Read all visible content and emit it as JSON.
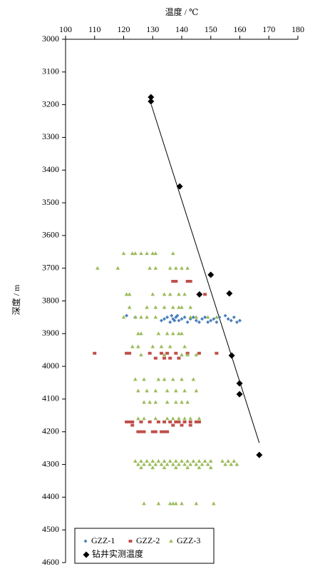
{
  "chart_data": {
    "type": "scatter",
    "x_label": "温度 / ℃",
    "y_label": "深度 / m",
    "xlim": [
      100,
      180
    ],
    "xticks": [
      100,
      110,
      120,
      130,
      140,
      150,
      160,
      170,
      180
    ],
    "ylim": [
      3000,
      4600
    ],
    "yticks": [
      3000,
      3100,
      3200,
      3300,
      3400,
      3500,
      3600,
      3700,
      3800,
      3900,
      4000,
      4100,
      4200,
      4300,
      4400,
      4500,
      4600
    ],
    "y_inverted": true,
    "x_axis_position": "top",
    "grid": false,
    "legend": "lower left",
    "series": [
      {
        "name": "GZZ-1",
        "color": "#4a7ebb",
        "marker": "diamond",
        "x": [
          121,
          124,
          133,
          134,
          135,
          136,
          136.5,
          137,
          137.5,
          138,
          138.5,
          139,
          140,
          141,
          142,
          143,
          144,
          145,
          146,
          147,
          148,
          149,
          150,
          151,
          152,
          153,
          155,
          156,
          157,
          158,
          159,
          160
        ],
        "values": [
          3845,
          3850,
          3860,
          3855,
          3850,
          3865,
          3845,
          3855,
          3860,
          3850,
          3845,
          3860,
          3855,
          3850,
          3865,
          3855,
          3850,
          3860,
          3865,
          3855,
          3850,
          3865,
          3860,
          3855,
          3865,
          3850,
          3845,
          3855,
          3860,
          3850,
          3865,
          3860
        ]
      },
      {
        "name": "GZZ-2",
        "color": "#c0504d",
        "marker": "square",
        "x": [
          137,
          138,
          142,
          143,
          148,
          110,
          121,
          122,
          129,
          133,
          135,
          138,
          142,
          146,
          152,
          131,
          134,
          136,
          139,
          121,
          122,
          123,
          126,
          129,
          132,
          134,
          136,
          138,
          139,
          141,
          143,
          145,
          146,
          123,
          137,
          140,
          143,
          125,
          126,
          127,
          130,
          131,
          133,
          134,
          135
        ],
        "values": [
          3740,
          3740,
          3740,
          3740,
          3780,
          3960,
          3960,
          3960,
          3960,
          3960,
          3960,
          3960,
          3960,
          3960,
          3960,
          3975,
          3975,
          3975,
          3975,
          4170,
          4170,
          4170,
          4170,
          4170,
          4170,
          4170,
          4170,
          4170,
          4170,
          4170,
          4170,
          4170,
          4170,
          4180,
          4180,
          4180,
          4180,
          4200,
          4200,
          4200,
          4200,
          4200,
          4200,
          4200,
          4200
        ]
      },
      {
        "name": "GZZ-3",
        "color": "#9bbb59",
        "marker": "triangle",
        "x": [
          120,
          123,
          124,
          126,
          128,
          130,
          131,
          137,
          111,
          118,
          129,
          131,
          136,
          138,
          140,
          142,
          121,
          122,
          130,
          134,
          136,
          139,
          141,
          122,
          128,
          131,
          134,
          137,
          139,
          140,
          143,
          120,
          124,
          126,
          128,
          131,
          143,
          145,
          149,
          152,
          125,
          126,
          132,
          135,
          137,
          139,
          140,
          123,
          125,
          130,
          133,
          136,
          141,
          126,
          134,
          140,
          142,
          145,
          124,
          127,
          132,
          134,
          137,
          140,
          144,
          125,
          128,
          131,
          135,
          138,
          141,
          145,
          127,
          129,
          131,
          135,
          138,
          140,
          142,
          125,
          127,
          131,
          135,
          137,
          139,
          141,
          143,
          146,
          124,
          126,
          128,
          130,
          132,
          134,
          136,
          138,
          140,
          142,
          144,
          146,
          148,
          150,
          154,
          156,
          158,
          125,
          127,
          129,
          131,
          133,
          135,
          137,
          139,
          141,
          143,
          145,
          147,
          149,
          155,
          157,
          159,
          126,
          130,
          134,
          138,
          142,
          146,
          150,
          127,
          132,
          136,
          137,
          138,
          140,
          145,
          151
        ],
        "values": [
          3655,
          3655,
          3655,
          3655,
          3655,
          3655,
          3655,
          3655,
          3700,
          3700,
          3700,
          3700,
          3700,
          3700,
          3700,
          3700,
          3780,
          3780,
          3780,
          3780,
          3780,
          3780,
          3780,
          3820,
          3820,
          3820,
          3820,
          3820,
          3820,
          3820,
          3820,
          3850,
          3850,
          3850,
          3850,
          3850,
          3850,
          3850,
          3850,
          3850,
          3900,
          3900,
          3900,
          3900,
          3900,
          3900,
          3900,
          3940,
          3940,
          3940,
          3940,
          3940,
          3940,
          3965,
          3965,
          3965,
          3965,
          3965,
          4040,
          4040,
          4040,
          4040,
          4040,
          4040,
          4040,
          4075,
          4075,
          4075,
          4075,
          4075,
          4075,
          4075,
          4110,
          4110,
          4110,
          4110,
          4110,
          4110,
          4110,
          4160,
          4160,
          4160,
          4160,
          4160,
          4160,
          4160,
          4160,
          4160,
          4290,
          4290,
          4290,
          4290,
          4290,
          4290,
          4290,
          4290,
          4290,
          4290,
          4290,
          4290,
          4290,
          4290,
          4290,
          4290,
          4290,
          4300,
          4300,
          4300,
          4300,
          4300,
          4300,
          4300,
          4300,
          4300,
          4300,
          4300,
          4300,
          4300,
          4300,
          4300,
          4300,
          4310,
          4310,
          4310,
          4310,
          4310,
          4310,
          4310,
          4420,
          4420,
          4420,
          4420,
          4420,
          4420,
          4420,
          4420
        ]
      },
      {
        "name": "钻井实测温度",
        "color": "#000000",
        "marker": "diamond-large",
        "x": [
          129.4,
          129.4,
          139.3,
          150,
          146.1,
          156.4,
          157.2,
          159.9,
          159.9,
          166.7
        ],
        "values": [
          3177,
          3190,
          3450,
          3720,
          3780,
          3777,
          3967,
          4052,
          4085,
          4271
        ]
      }
    ],
    "trend_line": {
      "color": "#000000",
      "x": [
        129.5,
        166.7
      ],
      "values": [
        3200,
        4234
      ]
    }
  }
}
